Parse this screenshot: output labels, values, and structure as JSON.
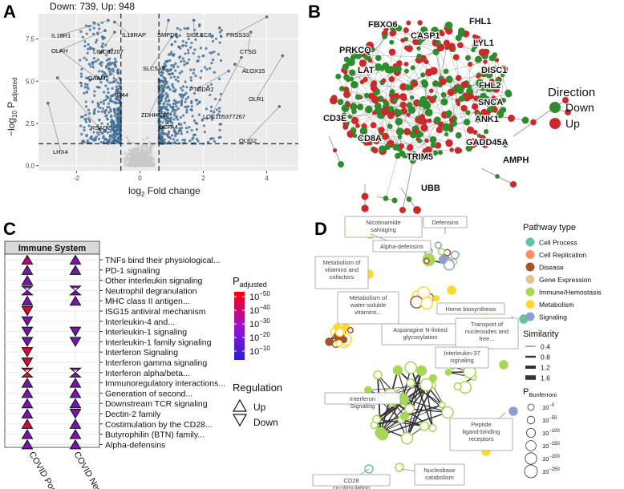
{
  "panels": {
    "a": "A",
    "b": "B",
    "c": "C",
    "d": "D"
  },
  "volcano": {
    "header": "Down: 739, Up: 948",
    "xlabel": "log",
    "xlabel_sub": "2",
    "xlabel_rest": " Fold change",
    "ylabel_lead": "−log",
    "ylabel_sub1": "10",
    "ylabel_mid": " P",
    "ylabel_sub2": "adjusted",
    "xlim": [
      -3.2,
      5.0
    ],
    "ylim": [
      -0.3,
      9.0
    ],
    "xticks": [
      -2,
      0,
      2,
      4
    ],
    "xtick_labels": [
      "-2",
      "0",
      "2",
      "4"
    ],
    "yticks": [
      0.0,
      2.5,
      5.0,
      7.5
    ],
    "ytick_labels": [
      "0.0",
      "2.5",
      "5.0",
      "7.5"
    ],
    "fc_threshold": 0.6,
    "p_threshold": 1.3,
    "genes": [
      {
        "label": "IL18R1",
        "x": -1.0,
        "y": 8.6
      },
      {
        "label": "OLAH",
        "x": -1.1,
        "y": 8.0
      },
      {
        "label": "LINC02207",
        "x": -0.8,
        "y": 7.9
      },
      {
        "label": "IL18RAP",
        "x": -0.8,
        "y": 8.5
      },
      {
        "label": "SMPD3",
        "x": 0.9,
        "y": 8.6
      },
      {
        "label": "SIGLEC8",
        "x": 1.7,
        "y": 8.6
      },
      {
        "label": "PRSS33",
        "x": 4.0,
        "y": 8.8
      },
      {
        "label": "CTSG",
        "x": 3.5,
        "y": 7.9
      },
      {
        "label": "ALOX15",
        "x": 3.0,
        "y": 6.0
      },
      {
        "label": "OLR1",
        "x": 4.5,
        "y": 6.5
      },
      {
        "label": "SLC5A9",
        "x": 1.0,
        "y": 7.6
      },
      {
        "label": "DAAM2",
        "x": -2.5,
        "y": 6.8
      },
      {
        "label": "IFI44",
        "x": -1.0,
        "y": 6.0
      },
      {
        "label": "PTGDR2",
        "x": 2.8,
        "y": 5.6
      },
      {
        "label": "RSAD2",
        "x": -2.6,
        "y": 5.2
      },
      {
        "label": "ZDHHC19",
        "x": 0.8,
        "y": 5.0
      },
      {
        "label": "LOC105377267",
        "x": 3.2,
        "y": 6.4
      },
      {
        "label": "OLIG2",
        "x": 4.4,
        "y": 3.5
      },
      {
        "label": "LHX4",
        "x": -2.9,
        "y": 3.7
      },
      {
        "label": "DEFA4",
        "x": 0.8,
        "y": 3.0
      }
    ],
    "colors": {
      "sig": "#3d6d96",
      "ns": "#c8c8c8"
    }
  },
  "network": {
    "genes": [
      "FBXO6",
      "CASP1",
      "FHL1",
      "LYL1",
      "DISC1",
      "FHL2",
      "PRKCQ",
      "LAT",
      "SNCA",
      "ANK1",
      "CD3E",
      "GADD45A",
      "CD8A",
      "TRIM5",
      "AMPH",
      "UBB"
    ],
    "highlight_gene": "FBXO6",
    "legend_title": "Direction",
    "legend": [
      {
        "label": "Down",
        "color": "#2e8b2e"
      },
      {
        "label": "Up",
        "color": "#cc2a2a"
      }
    ]
  },
  "pathway": {
    "strip_title": "Immune System",
    "columns": [
      "COVID Pos",
      "COVID Neg"
    ],
    "rows": [
      "TNFs bind their physiological...",
      "PD-1 signaling",
      "Other interleukin signaling",
      "Neutrophil degranulation",
      "MHC class II antigen...",
      "ISG15 antiviral mechanism",
      "Interleukin-4 and...",
      "Interleukin-1 signaling",
      "Interleukin-1 family signaling",
      "Interferon Signaling",
      "Interferon gamma signaling",
      "Interferon alpha/beta...",
      "Immunoregulatory interactions...",
      "Generation of second...",
      "Downstream TCR signaling",
      "Dectin-2 family",
      "Costimulation by the CD28...",
      "Butyrophilin (BTN) family...",
      "Alpha-defensins"
    ],
    "pos_markers": [
      {
        "type": "up",
        "p": -30
      },
      {
        "type": "up",
        "p": -15
      },
      {
        "type": "up",
        "p": -15
      },
      {
        "type": "hour",
        "p": -15
      },
      {
        "type": "up",
        "p": -15
      },
      {
        "type": "down",
        "p": -45
      },
      {
        "type": "down",
        "p": -15
      },
      {
        "type": "down",
        "p": -15
      },
      {
        "type": "down",
        "p": -15
      },
      {
        "type": "down",
        "p": -45
      },
      {
        "type": "down",
        "p": -45
      },
      {
        "type": "hour",
        "p": -45
      },
      {
        "type": "up",
        "p": -15
      },
      {
        "type": "up",
        "p": -15
      },
      {
        "type": "up",
        "p": -15
      },
      {
        "type": "up",
        "p": -15
      },
      {
        "type": "up",
        "p": -40
      },
      {
        "type": "up",
        "p": -15
      },
      {
        "type": "up",
        "p": -15
      }
    ],
    "neg_markers": [
      {
        "type": "up",
        "p": -15
      },
      {
        "type": "up",
        "p": -15
      },
      {
        "type": "none",
        "p": 0
      },
      {
        "type": "hour",
        "p": -15
      },
      {
        "type": "up",
        "p": -15
      },
      {
        "type": "none",
        "p": 0
      },
      {
        "type": "none",
        "p": 0
      },
      {
        "type": "down",
        "p": -15
      },
      {
        "type": "down",
        "p": -15
      },
      {
        "type": "none",
        "p": 0
      },
      {
        "type": "none",
        "p": 0
      },
      {
        "type": "hour",
        "p": -15
      },
      {
        "type": "up",
        "p": -15
      },
      {
        "type": "up",
        "p": -15
      },
      {
        "type": "up",
        "p": -15
      },
      {
        "type": "down",
        "p": -15
      },
      {
        "type": "up",
        "p": -15
      },
      {
        "type": "up",
        "p": -15
      },
      {
        "type": "up",
        "p": -15
      }
    ],
    "padj_title_lead": "P",
    "padj_title_sub": "adjusted",
    "padj_ticks": [
      "10",
      "10",
      "10",
      "10",
      "10"
    ],
    "padj_exps": [
      "−50",
      "−40",
      "−30",
      "−20",
      "−10"
    ],
    "regulation_title": "Regulation",
    "regulation_items": [
      "Up",
      "Down"
    ]
  },
  "enrichment": {
    "labels": [
      "Nicotinamide salvaging",
      "Defensins",
      "Alpha-defensins",
      "Metabolism of vitamins and cofactors",
      "Metabolism of water-soluble vitamins...",
      "Heme biosynthesis",
      "Asparagine N-linked glycosylation",
      "Transport of nucleosides and free...",
      "Interleukin-37 signaling",
      "Interferon Signaling",
      "Peptide ligand-binding receptors",
      "CD28 co-stimulation",
      "Nucleobase catabolism"
    ],
    "legend_title": "Pathway type",
    "legend": [
      {
        "label": "Cell Process",
        "color": "#66c2a5"
      },
      {
        "label": "Cell Replication",
        "color": "#fc8d62"
      },
      {
        "label": "Disease",
        "color": "#a6522b"
      },
      {
        "label": "Gene Expression",
        "color": "#e5c494"
      },
      {
        "label": "Immune/Hemostasis",
        "color": "#a6d854"
      },
      {
        "label": "Metabolism",
        "color": "#ffd92f"
      },
      {
        "label": "Signaling",
        "color": "#8da0cb"
      }
    ],
    "similarity_title": "Similarity",
    "similarity": [
      "0.4",
      "0.8",
      "1.2",
      "1.6"
    ],
    "bonf_title_lead": "P",
    "bonf_title_sub": "Bonferroni",
    "bonf_base": [
      "10",
      "10",
      "10",
      "10",
      "10",
      "10"
    ],
    "bonf_exps": [
      "−0",
      "−50",
      "−100",
      "−150",
      "−200",
      "−250"
    ]
  }
}
